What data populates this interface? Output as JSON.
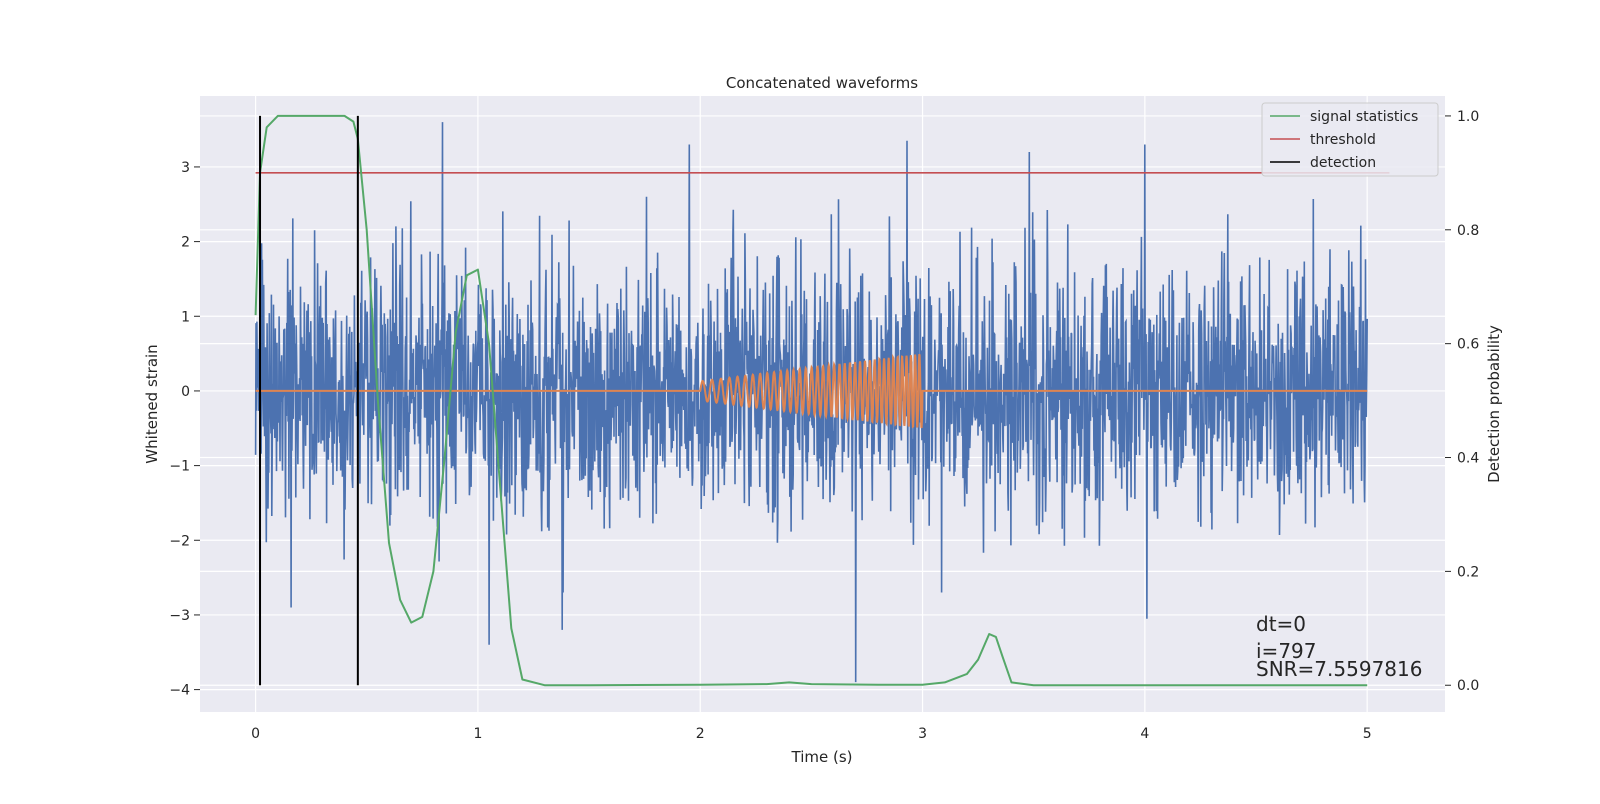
{
  "chart_data": {
    "type": "line",
    "title": "Concatenated waveforms",
    "xlabel": "Time (s)",
    "ylabel_left": "Whitened strain",
    "ylabel_right": "Detection probability",
    "xlim": [
      -0.25,
      5.35
    ],
    "ylim_left": [
      -4.3,
      3.95
    ],
    "ylim_right": [
      -0.047,
      1.035
    ],
    "x_ticks": [
      0,
      1,
      2,
      3,
      4,
      5
    ],
    "y_ticks_left": [
      -4,
      -3,
      -2,
      -1,
      0,
      1,
      2,
      3
    ],
    "y_ticks_left_labels": [
      "−4",
      "−3",
      "−2",
      "−1",
      "0",
      "1",
      "2",
      "3"
    ],
    "y_ticks_right": [
      0.0,
      0.2,
      0.4,
      0.6,
      0.8,
      1.0
    ],
    "y_ticks_right_labels": [
      "0.0",
      "0.2",
      "0.4",
      "0.6",
      "0.8",
      "1.0"
    ],
    "grid": true,
    "legend_position": "top-right",
    "colors": {
      "background": "#eaeaf2",
      "grid": "#ffffff",
      "noise": "#4c72b0",
      "injection": "#dd8452",
      "signal_statistics": "#55a868",
      "threshold": "#c44e52",
      "detection": "#000000"
    },
    "series": [
      {
        "name": "noise",
        "axis": "left",
        "description_x_range": [
          0,
          5
        ],
        "approx_std": 0.85,
        "spikes": [
          [
            0.84,
            3.6
          ],
          [
            1.95,
            3.3
          ],
          [
            2.93,
            3.35
          ],
          [
            3.48,
            3.2
          ],
          [
            4.0,
            3.3
          ],
          [
            2.7,
            -3.9
          ],
          [
            1.05,
            -3.4
          ],
          [
            1.38,
            -3.2
          ],
          [
            4.01,
            -3.05
          ],
          [
            0.16,
            -2.9
          ]
        ]
      },
      {
        "name": "injection",
        "axis": "left",
        "x": [
          0,
          2,
          3,
          5
        ],
        "amplitude_start": 0.13,
        "amplitude_end": 0.5,
        "chirp_window": [
          2.0,
          3.0
        ],
        "cycles": 38
      },
      {
        "name": "signal statistics",
        "axis": "right",
        "x": [
          0.0,
          0.02,
          0.05,
          0.1,
          0.2,
          0.4,
          0.44,
          0.46,
          0.5,
          0.55,
          0.6,
          0.65,
          0.7,
          0.75,
          0.8,
          0.85,
          0.9,
          0.95,
          1.0,
          1.05,
          1.1,
          1.15,
          1.2,
          1.3,
          1.5,
          2.0,
          2.3,
          2.4,
          2.5,
          2.8,
          3.0,
          3.1,
          3.2,
          3.25,
          3.3,
          3.33,
          3.36,
          3.4,
          3.5,
          4.0,
          5.0
        ],
        "values": [
          0.65,
          0.9,
          0.98,
          1.0,
          1.0,
          1.0,
          0.99,
          0.96,
          0.8,
          0.5,
          0.25,
          0.15,
          0.11,
          0.12,
          0.2,
          0.4,
          0.62,
          0.72,
          0.73,
          0.6,
          0.35,
          0.1,
          0.01,
          0.0,
          0.0,
          0.001,
          0.002,
          0.005,
          0.002,
          0.001,
          0.001,
          0.005,
          0.02,
          0.045,
          0.09,
          0.085,
          0.05,
          0.005,
          0.0,
          0.0,
          0.0
        ]
      },
      {
        "name": "threshold",
        "axis": "right",
        "x": [
          0,
          5.1
        ],
        "values": [
          0.9,
          0.9
        ]
      },
      {
        "name": "detection",
        "axis": "right",
        "x": [
          0.02,
          0.46
        ],
        "range": [
          0.0,
          1.0
        ]
      }
    ],
    "legend": [
      "signal statistics",
      "threshold",
      "detection"
    ],
    "annotations": {
      "dt": "dt=0",
      "i": "i=797",
      "snr": "SNR=7.5597816"
    }
  }
}
